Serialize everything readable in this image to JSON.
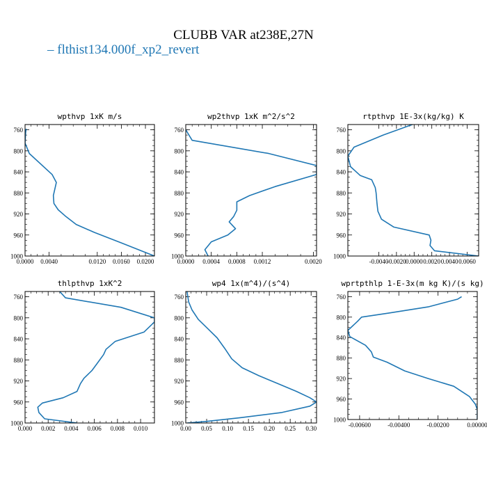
{
  "figure": {
    "title": "CLUBB VAR at238E,27N",
    "legend": {
      "label": "flthist134.000f_xp2_revert",
      "color": "#1f77b4",
      "placement": "top-left"
    }
  },
  "chart_data": [
    {
      "type": "line",
      "title": "wpthvp  1xK m/s",
      "xlim": [
        0.0,
        0.0215
      ],
      "ylim": [
        1000,
        750
      ],
      "xticks": [
        0.0,
        0.004,
        0.012,
        0.016,
        0.02
      ],
      "xtick_labels": [
        "0.0000",
        "0.0040",
        "0.0120",
        "0.0160",
        "0.0200"
      ],
      "yticks": [
        760,
        800,
        840,
        880,
        920,
        960,
        1000
      ],
      "series": [
        {
          "x": [
            0.0002,
            0.0001,
            0.0,
            0.0007,
            0.0045,
            0.0052,
            0.005,
            0.0047,
            0.0048,
            0.0055,
            0.0068,
            0.0085,
            0.0115,
            0.016,
            0.0215
          ],
          "y": [
            758,
            765,
            785,
            805,
            845,
            860,
            870,
            885,
            900,
            912,
            925,
            940,
            955,
            975,
            1000
          ]
        }
      ]
    },
    {
      "type": "line",
      "title": "wp2thvp  1xK m^2/s^2",
      "xlim": [
        0.0,
        0.00205
      ],
      "ylim": [
        1000,
        750
      ],
      "xticks": [
        0.0,
        0.0004,
        0.0008,
        0.0012,
        0.002
      ],
      "xtick_labels": [
        "0.0000",
        "0.0004",
        "0.0008",
        "0.0012",
        "0.0020"
      ],
      "yticks": [
        760,
        800,
        840,
        880,
        920,
        960,
        1000
      ],
      "series": [
        {
          "x": [
            0.0,
            0.0001,
            0.0013,
            0.00205,
            0.00205,
            0.0014,
            0.001,
            0.0008,
            0.0008,
            0.00075,
            0.00068,
            0.00078,
            0.00066,
            0.0004,
            0.0003,
            0.00035
          ],
          "y": [
            760,
            780,
            805,
            828,
            845,
            868,
            885,
            897,
            913,
            925,
            935,
            948,
            960,
            973,
            988,
            1000
          ]
        }
      ]
    },
    {
      "type": "line",
      "title": "rtpthvp  1E-3x(kg/kg) K",
      "xlim": [
        -0.0075,
        0.0073
      ],
      "ylim": [
        1000,
        750
      ],
      "xticks": [
        -0.004,
        -0.002,
        0.0,
        0.002,
        0.004,
        0.006
      ],
      "xtick_labels": [
        "-0.0040",
        "-0.0020",
        "0.0000",
        "0.0020",
        "0.0040",
        "0.0060"
      ],
      "yticks": [
        760,
        800,
        840,
        880,
        920,
        960,
        1000
      ],
      "series": [
        {
          "x": [
            -0.0002,
            -0.0035,
            -0.0068,
            -0.0075,
            -0.0072,
            -0.0061,
            -0.0048,
            -0.0044,
            -0.0043,
            -0.0042,
            -0.0041,
            -0.0037,
            -0.0023,
            0.0017,
            0.0019,
            0.0018,
            0.0023,
            0.0073
          ],
          "y": [
            750,
            770,
            793,
            810,
            830,
            847,
            855,
            870,
            880,
            900,
            915,
            930,
            945,
            960,
            970,
            980,
            990,
            1000
          ]
        }
      ]
    },
    {
      "type": "line",
      "title": "thlpthvp  1xK^2",
      "xlim": [
        0.0,
        0.0112
      ],
      "ylim": [
        1000,
        750
      ],
      "xticks": [
        0.0,
        0.002,
        0.004,
        0.006,
        0.008,
        0.01
      ],
      "xtick_labels": [
        "0.000",
        "0.002",
        "0.004",
        "0.006",
        "0.008",
        "0.010"
      ],
      "yticks": [
        760,
        800,
        840,
        880,
        920,
        960,
        1000
      ],
      "series": [
        {
          "x": [
            0.003,
            0.0035,
            0.0083,
            0.0112,
            0.0112,
            0.0103,
            0.0078,
            0.007,
            0.0068,
            0.0063,
            0.0058,
            0.0051,
            0.0048,
            0.0045,
            0.0033,
            0.0015,
            0.0011,
            0.0012,
            0.0017,
            0.0045
          ],
          "y": [
            750,
            762,
            780,
            800,
            808,
            827,
            845,
            860,
            870,
            885,
            900,
            915,
            925,
            940,
            952,
            962,
            970,
            980,
            992,
            1000
          ]
        }
      ]
    },
    {
      "type": "line",
      "title": "wp4  1x(m^4)/(s^4)",
      "xlim": [
        0.0,
        0.313
      ],
      "ylim": [
        1000,
        750
      ],
      "xticks": [
        0.0,
        0.05,
        0.1,
        0.15,
        0.2,
        0.25,
        0.3
      ],
      "xtick_labels": [
        "0.00",
        "0.05",
        "0.10",
        "0.15",
        "0.20",
        "0.25",
        "0.30"
      ],
      "yticks": [
        760,
        800,
        840,
        880,
        920,
        960,
        1000
      ],
      "series": [
        {
          "x": [
            0.003,
            0.007,
            0.015,
            0.03,
            0.052,
            0.075,
            0.093,
            0.11,
            0.135,
            0.175,
            0.22,
            0.265,
            0.297,
            0.313,
            0.297,
            0.23,
            0.13,
            0.05,
            0.003
          ],
          "y": [
            750,
            770,
            785,
            803,
            820,
            838,
            858,
            878,
            895,
            910,
            925,
            940,
            952,
            960,
            968,
            980,
            990,
            997,
            1000
          ]
        }
      ]
    },
    {
      "type": "line",
      "title": "wprtpthlp  1-E-3x(m kg K)/(s kg)",
      "xlim": [
        -0.0066,
        0.0
      ],
      "ylim": [
        1000,
        750
      ],
      "xticks": [
        -0.006,
        -0.004,
        -0.002,
        0.0
      ],
      "xtick_labels": [
        "-0.00600",
        "-0.00400",
        "-0.00200",
        "0.00000"
      ],
      "yticks": [
        760,
        800,
        840,
        880,
        920,
        960,
        1000
      ],
      "series": [
        {
          "x": [
            -0.0008,
            -0.001,
            -0.0025,
            -0.0045,
            -0.0059,
            -0.0061,
            -0.0066,
            -0.0065,
            -0.0057,
            -0.0054,
            -0.0053,
            -0.0046,
            -0.0037,
            -0.0025,
            -0.0012,
            -0.0004,
            -0.0001,
            0.0,
            0.0
          ],
          "y": [
            760,
            765,
            780,
            792,
            800,
            808,
            826,
            838,
            855,
            868,
            878,
            888,
            905,
            920,
            935,
            955,
            970,
            980,
            1000
          ]
        }
      ]
    }
  ]
}
